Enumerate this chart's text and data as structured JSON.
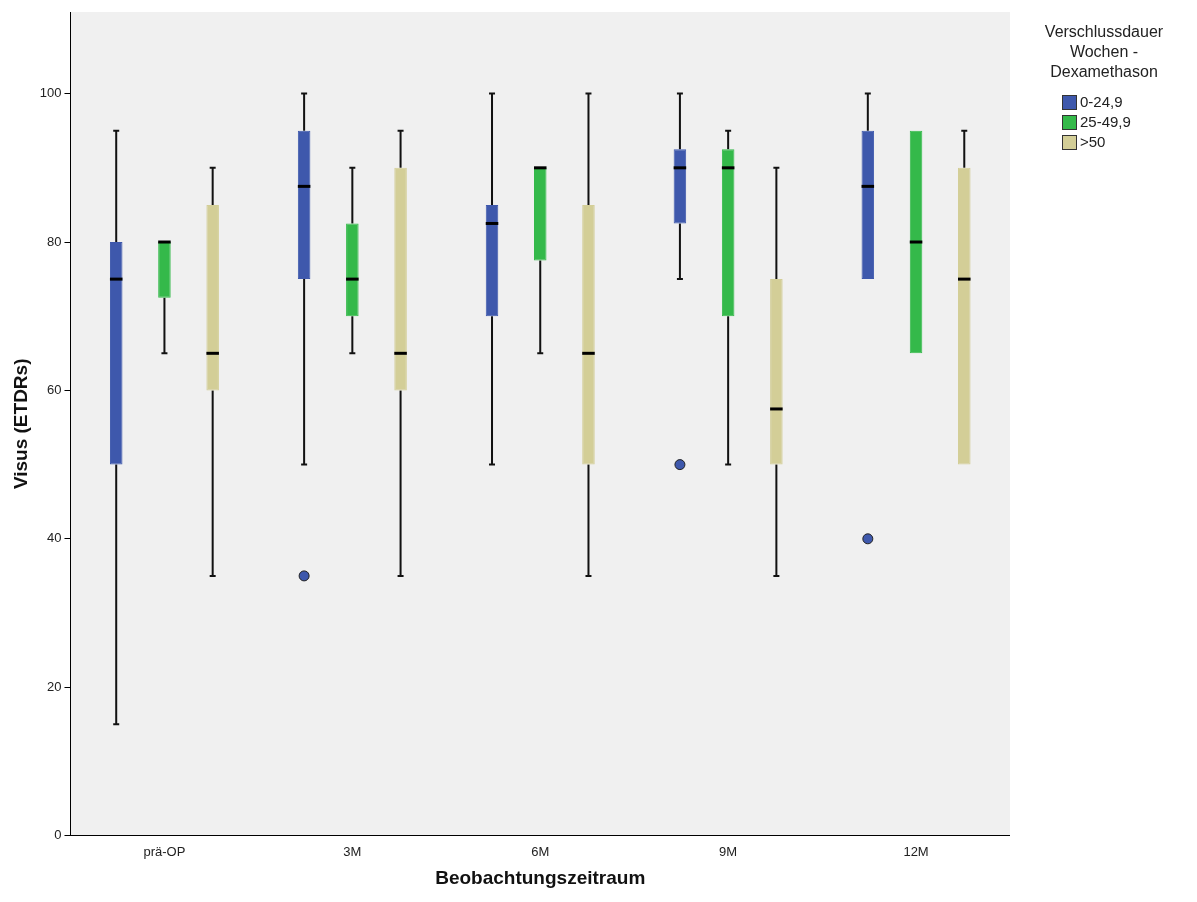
{
  "chart_data": {
    "type": "box",
    "xlabel": "Beobachtungszeitraum",
    "ylabel": "Visus (ETDRs)",
    "legend_title": "Verschlussdauer Wochen - Dexamethason",
    "legend": "right",
    "grid": false,
    "categories": [
      "prä-OP",
      "3M",
      "6M",
      "9M",
      "12M"
    ],
    "ylim": [
      0,
      111
    ],
    "yticks": [
      0,
      20,
      40,
      60,
      80,
      100
    ],
    "series": [
      {
        "name": "0-24,9",
        "color": "#3e58ac",
        "boxes": [
          {
            "low": 15,
            "q1": 50,
            "median": 75,
            "q3": 80,
            "high": 95
          },
          {
            "low": 50,
            "q1": 75,
            "median": 87.5,
            "q3": 95,
            "high": 100,
            "outliers": [
              35
            ]
          },
          {
            "low": 50,
            "q1": 70,
            "median": 82.5,
            "q3": 85,
            "high": 100
          },
          {
            "low": 75,
            "q1": 82.5,
            "median": 90,
            "q3": 92.5,
            "high": 100,
            "outliers": [
              50
            ]
          },
          {
            "low": 75,
            "q1": 75,
            "median": 87.5,
            "q3": 95,
            "high": 100,
            "outliers": [
              40
            ]
          }
        ]
      },
      {
        "name": "25-49,9",
        "color": "#34b94a",
        "boxes": [
          {
            "low": 65,
            "q1": 72.5,
            "median": 80,
            "q3": 80,
            "high": 80
          },
          {
            "low": 65,
            "q1": 70,
            "median": 75,
            "q3": 82.5,
            "high": 90
          },
          {
            "low": 65,
            "q1": 77.5,
            "median": 90,
            "q3": 90,
            "high": 90
          },
          {
            "low": 50,
            "q1": 70,
            "median": 90,
            "q3": 92.5,
            "high": 95
          },
          {
            "low": 65,
            "q1": 65,
            "median": 80,
            "q3": 95,
            "high": 95
          }
        ]
      },
      {
        "name": ">50",
        "color": "#d3ce97",
        "boxes": [
          {
            "low": 35,
            "q1": 60,
            "median": 65,
            "q3": 85,
            "high": 90
          },
          {
            "low": 35,
            "q1": 60,
            "median": 65,
            "q3": 90,
            "high": 95
          },
          {
            "low": 35,
            "q1": 50,
            "median": 65,
            "q3": 85,
            "high": 100
          },
          {
            "low": 35,
            "q1": 50,
            "median": 57.5,
            "q3": 75,
            "high": 90
          },
          {
            "low": 50,
            "q1": 50,
            "median": 75,
            "q3": 90,
            "high": 95
          }
        ]
      }
    ]
  }
}
